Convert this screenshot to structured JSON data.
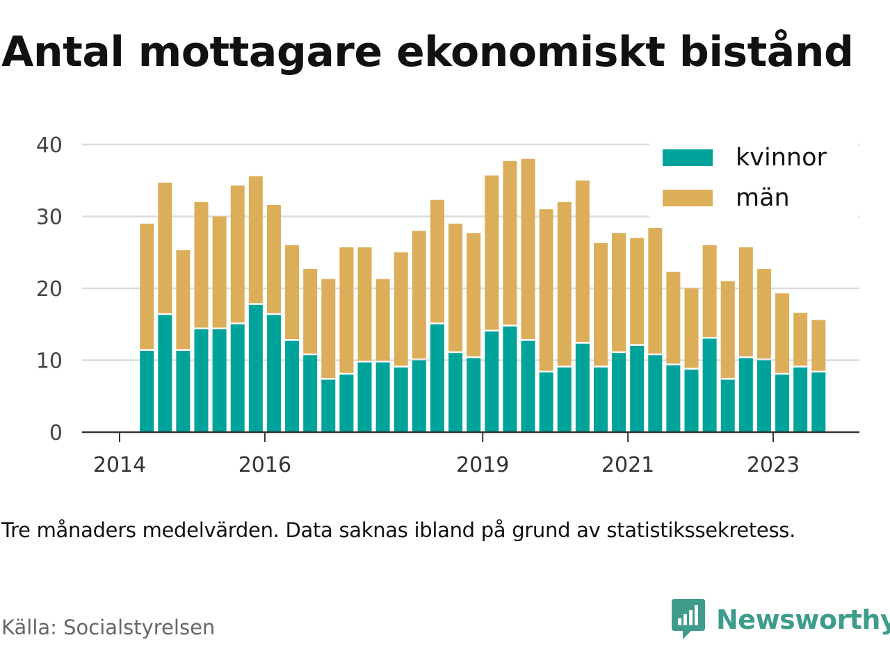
{
  "title": "Antal mottagare ekonomiskt bistånd",
  "note": "Tre månaders medelvärden. Data saknas ibland på grund av statistikssekretess.",
  "source": "Källa: Socialstyrelsen",
  "brand": {
    "name": "Newsworthy",
    "icon": "newsworthy-logo-icon",
    "color": "#3d9c8c"
  },
  "colors": {
    "kvinnor": "#00a39a",
    "man": "#dcae5a",
    "grid": "#dcdcdc",
    "axis": "#333333"
  },
  "chart_data": {
    "type": "bar",
    "stacked": true,
    "xlabel": "",
    "ylabel": "",
    "ylim": [
      0,
      40
    ],
    "yticks": [
      "0",
      "10",
      "20",
      "30",
      "40"
    ],
    "xticks": [
      "2014",
      "2016",
      "2019",
      "2021",
      "2023"
    ],
    "legend": "top-right",
    "grid": true,
    "x": [
      "2014-Q2",
      "2014-Q3",
      "2014-Q4",
      "2015-Q1",
      "2015-Q2",
      "2015-Q3",
      "2015-Q4",
      "2016-Q1",
      "2016-Q2",
      "2016-Q3",
      "2016-Q4",
      "2017-Q1",
      "2017-Q2",
      "2017-Q3",
      "2017-Q4",
      "2018-Q1",
      "2018-Q2",
      "2018-Q3",
      "2018-Q4",
      "2019-Q1",
      "2019-Q2",
      "2019-Q3",
      "2019-Q4",
      "2020-Q1",
      "2020-Q2",
      "2020-Q3",
      "2020-Q4",
      "2021-Q1",
      "2021-Q2",
      "2021-Q3",
      "2021-Q4",
      "2022-Q1",
      "2022-Q2",
      "2022-Q3",
      "2022-Q4",
      "2023-Q1",
      "2023-Q2",
      "2023-Q3"
    ],
    "series": [
      {
        "name": "kvinnor",
        "values": [
          11.3,
          16.3,
          11.3,
          14.3,
          14.3,
          15.0,
          17.7,
          16.3,
          12.7,
          10.7,
          7.3,
          8.0,
          9.7,
          9.7,
          9.0,
          10.0,
          15.0,
          11.0,
          10.3,
          14.0,
          14.7,
          12.7,
          8.3,
          9.0,
          12.3,
          9.0,
          11.0,
          12.0,
          10.7,
          9.3,
          8.7,
          13.0,
          7.3,
          10.3,
          10.0,
          8.0,
          9.0,
          8.3
        ]
      },
      {
        "name": "män",
        "values": [
          17.7,
          18.4,
          14.0,
          17.7,
          15.7,
          19.3,
          17.9,
          15.3,
          13.3,
          12.0,
          14.0,
          17.7,
          16.0,
          11.6,
          16.0,
          18.0,
          17.3,
          18.0,
          17.4,
          21.7,
          23.0,
          25.3,
          22.7,
          23.0,
          22.7,
          17.3,
          16.7,
          15.0,
          17.7,
          13.0,
          11.3,
          13.0,
          13.7,
          15.4,
          12.7,
          11.3,
          7.6,
          7.3
        ]
      }
    ]
  }
}
